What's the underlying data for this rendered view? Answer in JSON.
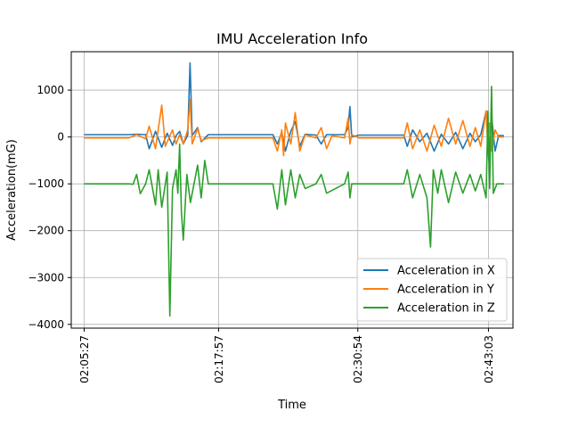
{
  "chart_data": {
    "type": "line",
    "title": "IMU Acceleration Info",
    "xlabel": "Time",
    "ylabel": "Acceleration(mG)",
    "grid": true,
    "legend_position": "lower-right",
    "xlim": [
      "02:04:15",
      "02:45:20"
    ],
    "ylim": [
      -4080,
      1820
    ],
    "x_ticks": [
      "02:05:27",
      "02:17:57",
      "02:30:54",
      "02:43:03"
    ],
    "y_ticks": [
      1000,
      0,
      -1000,
      -2000,
      -3000,
      -4000
    ],
    "y_tick_labels": [
      "1000",
      "0",
      "−1000",
      "−2000",
      "−3000",
      "−4000"
    ],
    "series": [
      {
        "name": "Acceleration in X",
        "color": "#1f77b4",
        "points": [
          [
            "02:05:27",
            50
          ],
          [
            "02:09:35",
            50
          ],
          [
            "02:10:20",
            60
          ],
          [
            "02:11:10",
            50
          ],
          [
            "02:11:30",
            -250
          ],
          [
            "02:12:05",
            120
          ],
          [
            "02:12:40",
            -220
          ],
          [
            "02:13:10",
            80
          ],
          [
            "02:13:40",
            -180
          ],
          [
            "02:14:00",
            30
          ],
          [
            "02:14:20",
            120
          ],
          [
            "02:14:40",
            -150
          ],
          [
            "02:15:05",
            40
          ],
          [
            "02:15:18",
            1580
          ],
          [
            "02:15:30",
            30
          ],
          [
            "02:16:00",
            200
          ],
          [
            "02:16:20",
            -100
          ],
          [
            "02:17:00",
            50
          ],
          [
            "02:23:00",
            50
          ],
          [
            "02:23:25",
            -150
          ],
          [
            "02:23:50",
            100
          ],
          [
            "02:24:10",
            -300
          ],
          [
            "02:24:40",
            120
          ],
          [
            "02:25:05",
            330
          ],
          [
            "02:25:30",
            -200
          ],
          [
            "02:26:00",
            60
          ],
          [
            "02:27:00",
            40
          ],
          [
            "02:27:30",
            -150
          ],
          [
            "02:28:00",
            50
          ],
          [
            "02:29:40",
            50
          ],
          [
            "02:30:00",
            200
          ],
          [
            "02:30:10",
            650
          ],
          [
            "02:30:20",
            0
          ],
          [
            "02:31:00",
            40
          ],
          [
            "02:35:10",
            40
          ],
          [
            "02:35:30",
            -200
          ],
          [
            "02:36:00",
            150
          ],
          [
            "02:36:40",
            -100
          ],
          [
            "02:37:20",
            80
          ],
          [
            "02:38:00",
            -300
          ],
          [
            "02:38:40",
            60
          ],
          [
            "02:39:20",
            -150
          ],
          [
            "02:40:00",
            100
          ],
          [
            "02:40:40",
            -250
          ],
          [
            "02:41:20",
            80
          ],
          [
            "02:41:50",
            -100
          ],
          [
            "02:42:20",
            50
          ],
          [
            "02:42:50",
            550
          ],
          [
            "02:43:05",
            -500
          ],
          [
            "02:43:20",
            450
          ],
          [
            "02:43:40",
            -300
          ],
          [
            "02:44:00",
            30
          ],
          [
            "02:44:30",
            30
          ]
        ]
      },
      {
        "name": "Acceleration in Y",
        "color": "#ff7f0e",
        "points": [
          [
            "02:05:27",
            -20
          ],
          [
            "02:09:35",
            -20
          ],
          [
            "02:10:20",
            50
          ],
          [
            "02:11:10",
            -40
          ],
          [
            "02:11:30",
            230
          ],
          [
            "02:12:05",
            -250
          ],
          [
            "02:12:40",
            680
          ],
          [
            "02:13:00",
            -200
          ],
          [
            "02:13:40",
            150
          ],
          [
            "02:14:00",
            -150
          ],
          [
            "02:14:20",
            50
          ],
          [
            "02:14:40",
            -150
          ],
          [
            "02:15:05",
            150
          ],
          [
            "02:15:18",
            800
          ],
          [
            "02:15:30",
            -150
          ],
          [
            "02:16:00",
            180
          ],
          [
            "02:16:20",
            -80
          ],
          [
            "02:17:00",
            -20
          ],
          [
            "02:23:00",
            -20
          ],
          [
            "02:23:25",
            -300
          ],
          [
            "02:23:50",
            150
          ],
          [
            "02:24:00",
            -400
          ],
          [
            "02:24:10",
            300
          ],
          [
            "02:24:40",
            -150
          ],
          [
            "02:25:05",
            520
          ],
          [
            "02:25:30",
            -300
          ],
          [
            "02:26:00",
            50
          ],
          [
            "02:27:00",
            -20
          ],
          [
            "02:27:30",
            200
          ],
          [
            "02:28:00",
            -250
          ],
          [
            "02:28:30",
            30
          ],
          [
            "02:29:40",
            -20
          ],
          [
            "02:30:00",
            400
          ],
          [
            "02:30:10",
            -150
          ],
          [
            "02:30:20",
            50
          ],
          [
            "02:31:00",
            -20
          ],
          [
            "02:35:10",
            -20
          ],
          [
            "02:35:30",
            300
          ],
          [
            "02:36:00",
            -250
          ],
          [
            "02:36:40",
            150
          ],
          [
            "02:37:20",
            -300
          ],
          [
            "02:38:00",
            250
          ],
          [
            "02:38:40",
            -200
          ],
          [
            "02:39:20",
            400
          ],
          [
            "02:40:00",
            -150
          ],
          [
            "02:40:40",
            350
          ],
          [
            "02:41:20",
            -200
          ],
          [
            "02:41:50",
            200
          ],
          [
            "02:42:20",
            -200
          ],
          [
            "02:42:50",
            560
          ],
          [
            "02:43:00",
            -200
          ],
          [
            "02:43:10",
            300
          ],
          [
            "02:43:20",
            -300
          ],
          [
            "02:43:40",
            150
          ],
          [
            "02:44:00",
            0
          ],
          [
            "02:44:30",
            0
          ]
        ]
      },
      {
        "name": "Acceleration in Z",
        "color": "#2ca02c",
        "points": [
          [
            "02:05:27",
            -1000
          ],
          [
            "02:09:35",
            -1000
          ],
          [
            "02:10:00",
            -1010
          ],
          [
            "02:10:20",
            -800
          ],
          [
            "02:10:40",
            -1210
          ],
          [
            "02:11:10",
            -1000
          ],
          [
            "02:11:30",
            -700
          ],
          [
            "02:12:05",
            -1450
          ],
          [
            "02:12:20",
            -700
          ],
          [
            "02:12:40",
            -1500
          ],
          [
            "02:13:10",
            -750
          ],
          [
            "02:13:25",
            -3820
          ],
          [
            "02:13:40",
            -1100
          ],
          [
            "02:14:00",
            -700
          ],
          [
            "02:14:10",
            -1200
          ],
          [
            "02:14:20",
            -150
          ],
          [
            "02:14:30",
            -1600
          ],
          [
            "02:14:40",
            -2200
          ],
          [
            "02:15:00",
            -800
          ],
          [
            "02:15:20",
            -1400
          ],
          [
            "02:16:00",
            -600
          ],
          [
            "02:16:20",
            -1300
          ],
          [
            "02:16:40",
            -500
          ],
          [
            "02:17:00",
            -1000
          ],
          [
            "02:23:00",
            -1000
          ],
          [
            "02:23:25",
            -1540
          ],
          [
            "02:23:50",
            -700
          ],
          [
            "02:24:10",
            -1450
          ],
          [
            "02:24:40",
            -700
          ],
          [
            "02:25:05",
            -1300
          ],
          [
            "02:25:30",
            -800
          ],
          [
            "02:26:00",
            -1100
          ],
          [
            "02:27:00",
            -1000
          ],
          [
            "02:27:30",
            -800
          ],
          [
            "02:28:00",
            -1200
          ],
          [
            "02:29:40",
            -1000
          ],
          [
            "02:30:00",
            -750
          ],
          [
            "02:30:10",
            -1300
          ],
          [
            "02:30:20",
            -1000
          ],
          [
            "02:35:10",
            -1000
          ],
          [
            "02:35:30",
            -700
          ],
          [
            "02:36:00",
            -1300
          ],
          [
            "02:36:40",
            -800
          ],
          [
            "02:37:20",
            -1300
          ],
          [
            "02:37:40",
            -2350
          ],
          [
            "02:37:55",
            -700
          ],
          [
            "02:38:20",
            -1200
          ],
          [
            "02:38:40",
            -700
          ],
          [
            "02:39:20",
            -1400
          ],
          [
            "02:40:00",
            -750
          ],
          [
            "02:40:40",
            -1200
          ],
          [
            "02:41:20",
            -800
          ],
          [
            "02:41:50",
            -1150
          ],
          [
            "02:42:20",
            -800
          ],
          [
            "02:42:50",
            -1300
          ],
          [
            "02:43:00",
            550
          ],
          [
            "02:43:10",
            -1100
          ],
          [
            "02:43:20",
            1080
          ],
          [
            "02:43:30",
            -1200
          ],
          [
            "02:43:50",
            -1000
          ],
          [
            "02:44:30",
            -1000
          ]
        ]
      }
    ]
  }
}
